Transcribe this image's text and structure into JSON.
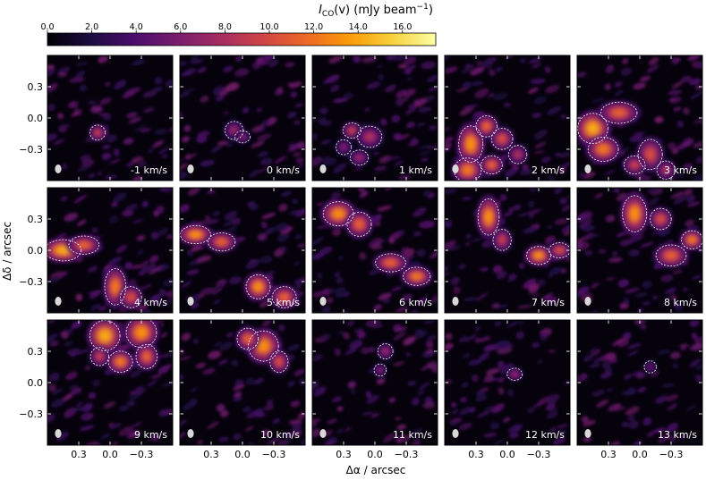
{
  "chart_data": {
    "type": "heatmap",
    "colorbar": {
      "label": "I_CO(v) (mJy beam^-1)",
      "label_main": "I",
      "label_sub": "CO",
      "label_rest": "(v) (mJy beam",
      "label_sup": "−1",
      "label_close": ")",
      "range": [
        0,
        17.5
      ],
      "ticks": [
        0.0,
        2.0,
        4.0,
        6.0,
        8.0,
        10.0,
        12.0,
        14.0,
        16.0
      ],
      "tick_labels": [
        "0.0",
        "2.0",
        "4.0",
        "6.0",
        "8.0",
        "10.0",
        "12.0",
        "14.0",
        "16.0"
      ],
      "colormap": "inferno-like",
      "stops": [
        "#000004",
        "#1b0c41",
        "#4a0c6b",
        "#781c6d",
        "#a52c60",
        "#cf4446",
        "#ed6925",
        "#fb9b06",
        "#f7d13d",
        "#fcffa4"
      ]
    },
    "xlabel": "Δα / arcsec",
    "ylabel": "Δδ / arcsec",
    "x_ticks": [
      0.3,
      0.0,
      -0.3
    ],
    "x_tick_labels": [
      "0.3",
      "0.0",
      "−0.3"
    ],
    "y_ticks": [
      0.3,
      0.0,
      -0.3
    ],
    "y_tick_labels": [
      "0.3",
      "0.0",
      "−0.3"
    ],
    "xlim": [
      0.6,
      -0.6
    ],
    "ylim": [
      -0.6,
      0.6
    ],
    "contour_color": "#ffffff",
    "panels": [
      {
        "label": "-1 km/s",
        "blobs": [
          [
            0.12,
            -0.14,
            0.05,
            0.05,
            9
          ]
        ]
      },
      {
        "label": "0 km/s",
        "blobs": [
          [
            0.08,
            -0.12,
            0.06,
            0.06,
            7
          ],
          [
            0.0,
            -0.18,
            0.05,
            0.04,
            6
          ]
        ]
      },
      {
        "label": "1 km/s",
        "blobs": [
          [
            0.22,
            -0.12,
            0.06,
            0.05,
            9
          ],
          [
            0.05,
            -0.18,
            0.08,
            0.07,
            8
          ],
          [
            0.15,
            -0.38,
            0.06,
            0.05,
            7
          ],
          [
            0.3,
            -0.28,
            0.05,
            0.05,
            6
          ]
        ]
      },
      {
        "label": "2 km/s",
        "blobs": [
          [
            0.35,
            -0.25,
            0.08,
            0.12,
            13
          ],
          [
            0.2,
            -0.08,
            0.07,
            0.07,
            11
          ],
          [
            0.38,
            -0.5,
            0.09,
            0.08,
            12
          ],
          [
            0.05,
            -0.2,
            0.07,
            0.07,
            10
          ],
          [
            -0.1,
            -0.35,
            0.06,
            0.06,
            8
          ],
          [
            0.15,
            -0.45,
            0.07,
            0.06,
            11
          ]
        ]
      },
      {
        "label": "3 km/s",
        "blobs": [
          [
            0.45,
            -0.1,
            0.1,
            0.1,
            14
          ],
          [
            0.2,
            0.05,
            0.12,
            0.07,
            11
          ],
          [
            0.35,
            -0.3,
            0.1,
            0.08,
            12
          ],
          [
            -0.1,
            -0.35,
            0.08,
            0.1,
            10
          ],
          [
            0.05,
            -0.45,
            0.07,
            0.06,
            9
          ],
          [
            -0.25,
            -0.5,
            0.06,
            0.06,
            8
          ]
        ]
      },
      {
        "label": "4 km/s",
        "blobs": [
          [
            0.45,
            0.0,
            0.12,
            0.07,
            14
          ],
          [
            0.25,
            0.05,
            0.1,
            0.06,
            11
          ],
          [
            -0.05,
            -0.35,
            0.07,
            0.12,
            12
          ],
          [
            -0.2,
            -0.45,
            0.07,
            0.07,
            10
          ]
        ]
      },
      {
        "label": "5 km/s",
        "blobs": [
          [
            0.45,
            0.15,
            0.1,
            0.06,
            13
          ],
          [
            0.2,
            0.08,
            0.09,
            0.06,
            11
          ],
          [
            -0.15,
            -0.35,
            0.08,
            0.08,
            13
          ],
          [
            -0.4,
            -0.45,
            0.08,
            0.07,
            11
          ]
        ]
      },
      {
        "label": "6 km/s",
        "blobs": [
          [
            0.35,
            0.35,
            0.1,
            0.08,
            13
          ],
          [
            0.15,
            0.25,
            0.08,
            0.08,
            11
          ],
          [
            -0.15,
            -0.12,
            0.1,
            0.06,
            11
          ],
          [
            -0.4,
            -0.25,
            0.09,
            0.06,
            12
          ]
        ]
      },
      {
        "label": "7 km/s",
        "blobs": [
          [
            0.18,
            0.32,
            0.07,
            0.12,
            13
          ],
          [
            0.05,
            0.1,
            0.06,
            0.07,
            9
          ],
          [
            -0.3,
            -0.05,
            0.08,
            0.06,
            13
          ],
          [
            -0.5,
            0.0,
            0.07,
            0.05,
            10
          ]
        ]
      },
      {
        "label": "8 km/s",
        "blobs": [
          [
            0.05,
            0.35,
            0.08,
            0.12,
            13
          ],
          [
            -0.2,
            0.3,
            0.07,
            0.07,
            10
          ],
          [
            -0.3,
            -0.05,
            0.1,
            0.07,
            11
          ],
          [
            -0.5,
            0.1,
            0.07,
            0.06,
            12
          ]
        ]
      },
      {
        "label": "9 km/s",
        "blobs": [
          [
            0.05,
            0.45,
            0.1,
            0.1,
            14
          ],
          [
            -0.3,
            0.48,
            0.1,
            0.1,
            13
          ],
          [
            -0.1,
            0.2,
            0.08,
            0.07,
            12
          ],
          [
            -0.35,
            0.25,
            0.07,
            0.08,
            11
          ],
          [
            0.1,
            0.25,
            0.06,
            0.06,
            9
          ]
        ]
      },
      {
        "label": "10 km/s",
        "blobs": [
          [
            -0.2,
            0.35,
            0.1,
            0.1,
            13
          ],
          [
            -0.05,
            0.42,
            0.07,
            0.07,
            11
          ],
          [
            -0.35,
            0.2,
            0.06,
            0.07,
            10
          ]
        ]
      },
      {
        "label": "11 km/s",
        "blobs": [
          [
            -0.1,
            0.3,
            0.05,
            0.05,
            7
          ],
          [
            -0.05,
            0.12,
            0.04,
            0.04,
            6
          ]
        ]
      },
      {
        "label": "12 km/s",
        "blobs": [
          [
            -0.07,
            0.08,
            0.05,
            0.04,
            7
          ]
        ]
      },
      {
        "label": "13 km/s",
        "blobs": [
          [
            -0.1,
            0.15,
            0.04,
            0.04,
            5
          ]
        ]
      }
    ]
  }
}
